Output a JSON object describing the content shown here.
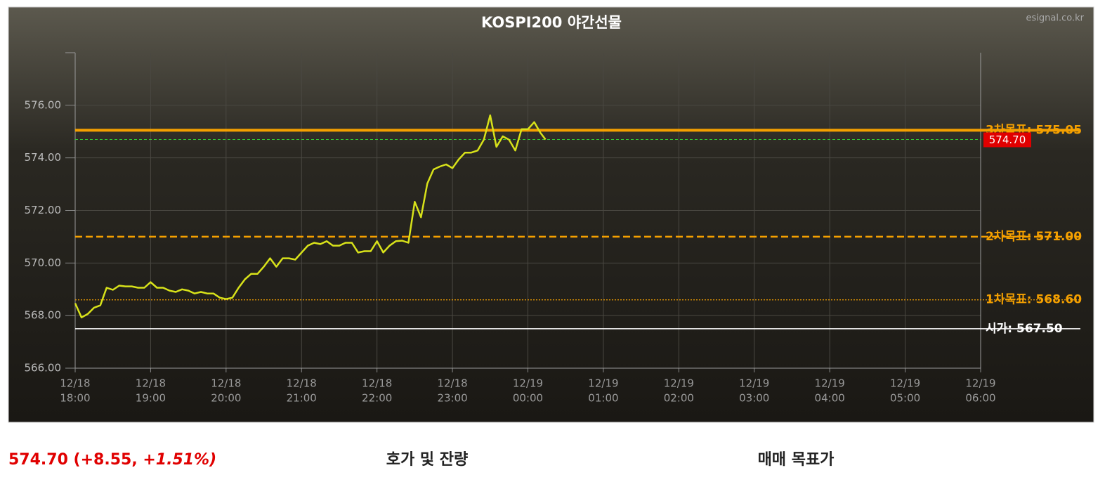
{
  "chart_data": {
    "type": "line",
    "title": "KOSPI200 야간선물",
    "source": "esignal.co.kr",
    "x": [
      "12/18 18:00",
      "12/18 18:05",
      "12/18 18:10",
      "12/18 18:15",
      "12/18 18:20",
      "12/18 18:25",
      "12/18 18:30",
      "12/18 18:35",
      "12/18 18:40",
      "12/18 18:45",
      "12/18 18:50",
      "12/18 18:55",
      "12/18 19:00",
      "12/18 19:05",
      "12/18 19:10",
      "12/18 19:15",
      "12/18 19:20",
      "12/18 19:25",
      "12/18 19:30",
      "12/18 19:35",
      "12/18 19:40",
      "12/18 19:45",
      "12/18 19:50",
      "12/18 19:55",
      "12/18 20:00",
      "12/18 20:05",
      "12/18 20:10",
      "12/18 20:15",
      "12/18 20:20",
      "12/18 20:25",
      "12/18 20:30",
      "12/18 20:35",
      "12/18 20:40",
      "12/18 20:45",
      "12/18 20:50",
      "12/18 20:55",
      "12/18 21:00",
      "12/18 21:05",
      "12/18 21:10",
      "12/18 21:15",
      "12/18 21:20",
      "12/18 21:25",
      "12/18 21:30",
      "12/18 21:35",
      "12/18 21:40",
      "12/18 21:45",
      "12/18 21:50",
      "12/18 21:55",
      "12/18 22:00",
      "12/18 22:05",
      "12/18 22:10",
      "12/18 22:15",
      "12/18 22:20",
      "12/18 22:25",
      "12/18 22:30",
      "12/18 22:35",
      "12/18 22:40",
      "12/18 22:45",
      "12/18 22:50",
      "12/18 22:55",
      "12/18 23:00",
      "12/18 23:05",
      "12/18 23:10",
      "12/18 23:15",
      "12/18 23:20",
      "12/18 23:25",
      "12/18 23:30",
      "12/18 23:35",
      "12/18 23:40",
      "12/18 23:45",
      "12/18 23:50",
      "12/18 23:55",
      "12/19 00:00",
      "12/19 00:05",
      "12/19 00:10",
      "12/19 00:14"
    ],
    "series": [
      {
        "name": "KOSPI200 야간선물",
        "color": "#d8e21a",
        "values": [
          568.47,
          567.93,
          568.06,
          568.3,
          568.39,
          569.06,
          568.98,
          569.14,
          569.11,
          569.11,
          569.06,
          569.06,
          569.27,
          569.06,
          569.06,
          568.95,
          568.9,
          569.0,
          568.95,
          568.84,
          568.9,
          568.84,
          568.84,
          568.68,
          568.63,
          568.68,
          569.06,
          569.38,
          569.59,
          569.59,
          569.86,
          570.18,
          569.86,
          570.18,
          570.18,
          570.13,
          570.4,
          570.66,
          570.77,
          570.72,
          570.83,
          570.66,
          570.66,
          570.77,
          570.77,
          570.4,
          570.45,
          570.45,
          570.83,
          570.4,
          570.66,
          570.83,
          570.85,
          570.77,
          572.33,
          571.74,
          573.02,
          573.56,
          573.67,
          573.75,
          573.61,
          573.94,
          574.2,
          574.2,
          574.28,
          574.69,
          575.62,
          574.42,
          574.82,
          574.69,
          574.28,
          575.09,
          575.09,
          575.36,
          574.95,
          574.7
        ]
      }
    ],
    "xlim": [
      "12/18 18:00",
      "12/19 06:00"
    ],
    "xticks": [
      {
        "date": "12/18",
        "time": "18:00"
      },
      {
        "date": "12/18",
        "time": "19:00"
      },
      {
        "date": "12/18",
        "time": "20:00"
      },
      {
        "date": "12/18",
        "time": "21:00"
      },
      {
        "date": "12/18",
        "time": "22:00"
      },
      {
        "date": "12/18",
        "time": "23:00"
      },
      {
        "date": "12/19",
        "time": "00:00"
      },
      {
        "date": "12/19",
        "time": "01:00"
      },
      {
        "date": "12/19",
        "time": "02:00"
      },
      {
        "date": "12/19",
        "time": "03:00"
      },
      {
        "date": "12/19",
        "time": "04:00"
      },
      {
        "date": "12/19",
        "time": "05:00"
      },
      {
        "date": "12/19",
        "time": "06:00"
      }
    ],
    "ylim": [
      566,
      578
    ],
    "yticks": [
      {
        "value": 566,
        "label": "566.00"
      },
      {
        "value": 568,
        "label": "568.00"
      },
      {
        "value": 570,
        "label": "570.00"
      },
      {
        "value": 572,
        "label": "572.00"
      },
      {
        "value": 574,
        "label": "574.00"
      },
      {
        "value": 576,
        "label": "576.00"
      }
    ],
    "grid": true,
    "reference_lines": [
      {
        "label": "3차목표: 575.05",
        "value": 575.05,
        "color": "#f5a000",
        "style": "solid"
      },
      {
        "label": "2차목표: 571.00",
        "value": 571.0,
        "color": "#f5a000",
        "style": "dashed"
      },
      {
        "label": "1차목표: 568.60",
        "value": 568.6,
        "color": "#f5a000",
        "style": "dotted"
      },
      {
        "label": "시가: 567.50",
        "value": 567.5,
        "color": "#ffffff",
        "style": "solid"
      }
    ],
    "current": {
      "value": 574.7,
      "value_label": "574.70",
      "color": "#33cc33",
      "box_color": "#e00000"
    }
  },
  "footer": {
    "quote_main": "574.70 (+8.55, +",
    "quote_italic": "1.51%)",
    "orderbook_title": "호가 및 잔량",
    "target_title": "매매 목표가"
  }
}
